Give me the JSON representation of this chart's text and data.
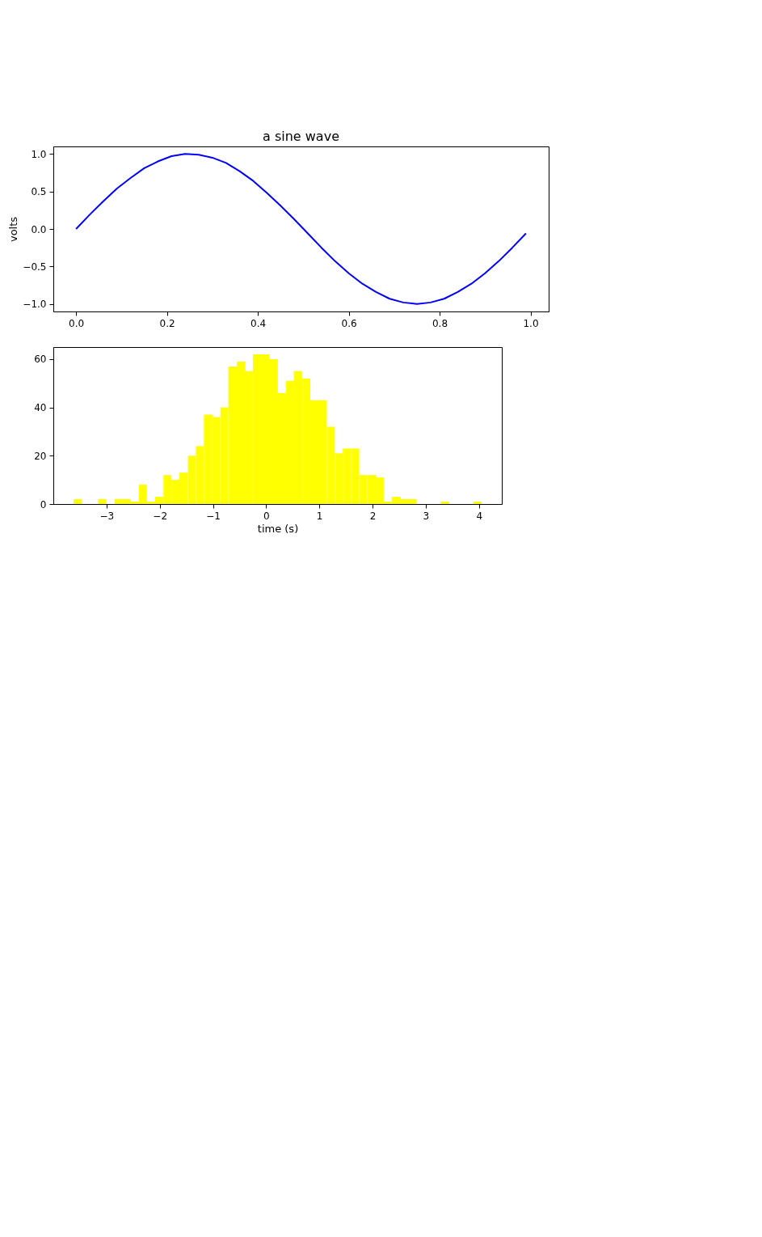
{
  "chart_data": [
    {
      "type": "line",
      "title": "a sine wave",
      "ylabel": "volts",
      "grid": false,
      "legend": false,
      "x": [
        0,
        0.03,
        0.06,
        0.09,
        0.12,
        0.15,
        0.18,
        0.21,
        0.24,
        0.27,
        0.3,
        0.33,
        0.36,
        0.39,
        0.42,
        0.45,
        0.48,
        0.51,
        0.54,
        0.57,
        0.6,
        0.63,
        0.66,
        0.69,
        0.72,
        0.75,
        0.78,
        0.81,
        0.84,
        0.87,
        0.9,
        0.93,
        0.96,
        0.99
      ],
      "series": [
        {
          "color": "#0000ff",
          "values": [
            0,
            0.19,
            0.37,
            0.54,
            0.68,
            0.81,
            0.9,
            0.97,
            1.0,
            0.99,
            0.95,
            0.88,
            0.77,
            0.64,
            0.48,
            0.31,
            0.13,
            -0.06,
            -0.25,
            -0.43,
            -0.59,
            -0.73,
            -0.84,
            -0.93,
            -0.98,
            -1.0,
            -0.98,
            -0.93,
            -0.84,
            -0.73,
            -0.59,
            -0.43,
            -0.25,
            -0.06
          ]
        }
      ],
      "xlim": [
        -0.05,
        1.04
      ],
      "ylim": [
        -1.1,
        1.1
      ],
      "xticks": [
        {
          "value": 0,
          "label": "0.0"
        },
        0.2,
        0.4,
        0.6,
        0.8,
        {
          "value": 1,
          "label": "1.0"
        }
      ],
      "yticks": [
        {
          "value": -1,
          "label": "−1.0"
        },
        {
          "value": -0.5,
          "label": "−0.5"
        },
        {
          "value": 0,
          "label": "0.0"
        },
        0.5,
        {
          "value": 1,
          "label": "1.0"
        }
      ]
    },
    {
      "type": "histogram",
      "xlabel": "time (s)",
      "grid": false,
      "legend": false,
      "color": "#ffff00",
      "bins": [
        -3.62,
        -3.47,
        -3.16,
        -3.01,
        -2.85,
        -2.7,
        -2.55,
        -2.39,
        -2.24,
        -2.09,
        -1.93,
        -1.78,
        -1.63,
        -1.47,
        -1.32,
        -1.17,
        -1.01,
        -0.86,
        -0.71,
        -0.55,
        -0.4,
        -0.25,
        -0.09,
        0.06,
        0.22,
        0.37,
        0.52,
        0.68,
        0.83,
        0.98,
        1.14,
        1.29,
        1.44,
        1.6,
        1.75,
        1.9,
        2.06,
        2.21,
        2.36,
        2.52,
        2.67,
        2.82,
        3.28,
        3.44,
        3.9,
        4.05
      ],
      "values": [
        2,
        0,
        2,
        0,
        2,
        2,
        1,
        8,
        1,
        3,
        12,
        10,
        13,
        20,
        24,
        37,
        36,
        40,
        57,
        59,
        55,
        62,
        62,
        60,
        46,
        51,
        55,
        52,
        43,
        43,
        32,
        21,
        23,
        23,
        12,
        12,
        11,
        1,
        3,
        2,
        2,
        0,
        1,
        0,
        1
      ],
      "xlim": [
        -4.0,
        4.43
      ],
      "ylim": [
        0,
        65
      ],
      "xticks": [
        {
          "value": -3,
          "label": "−3"
        },
        {
          "value": -2,
          "label": "−2"
        },
        {
          "value": -1,
          "label": "−1"
        },
        0,
        1,
        2,
        3,
        4
      ],
      "yticks": [
        0,
        20,
        40,
        60
      ]
    }
  ]
}
